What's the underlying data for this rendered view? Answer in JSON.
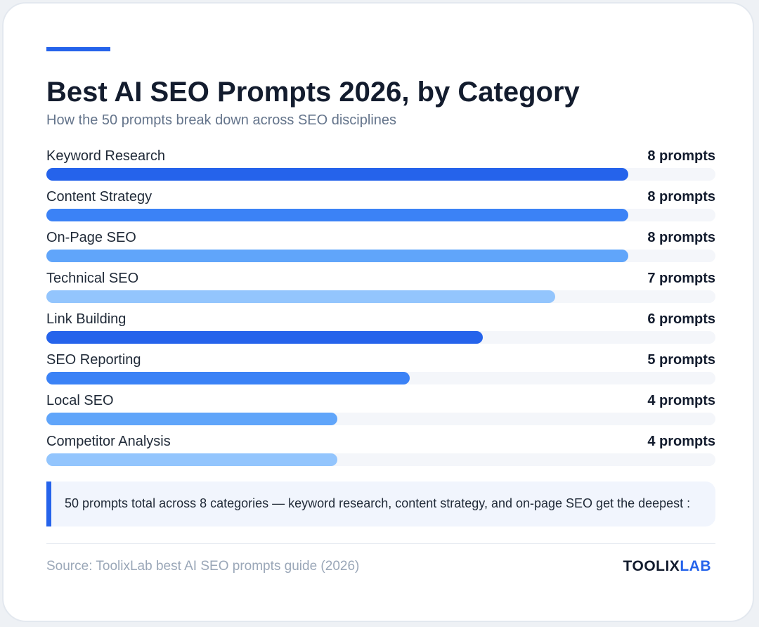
{
  "header": {
    "title": "Best AI SEO Prompts 2026, by Category",
    "subtitle": "How the 50 prompts break down across SEO disciplines"
  },
  "chart_data": {
    "type": "bar",
    "orientation": "horizontal",
    "title": "Best AI SEO Prompts 2026, by Category",
    "subtitle": "How the 50 prompts break down across SEO disciplines",
    "categories": [
      "Keyword Research",
      "Content Strategy",
      "On-Page SEO",
      "Technical SEO",
      "Link Building",
      "SEO Reporting",
      "Local SEO",
      "Competitor Analysis"
    ],
    "values": [
      8,
      8,
      8,
      7,
      6,
      5,
      4,
      4
    ],
    "value_labels": [
      "8 prompts",
      "8 prompts",
      "8 prompts",
      "7 prompts",
      "6 prompts",
      "5 prompts",
      "4 prompts",
      "4 prompts"
    ],
    "bar_colors": [
      "#2563eb",
      "#3b82f6",
      "#60a5fa",
      "#93c5fd",
      "#2563eb",
      "#3b82f6",
      "#60a5fa",
      "#93c5fd"
    ],
    "xlim": [
      0,
      9.2
    ],
    "grid": false,
    "legend": "none"
  },
  "callout": {
    "text": "50 prompts total across 8 categories — keyword research, content strategy, and on-page SEO get the deepest :"
  },
  "footer": {
    "source": "Source: ToolixLab best AI SEO prompts guide (2026)",
    "brand_part1": "TOOLIX",
    "brand_part2": "LAB"
  },
  "colors": {
    "accent": "#2563eb",
    "title": "#131c2e",
    "track": "#f4f6fa"
  }
}
